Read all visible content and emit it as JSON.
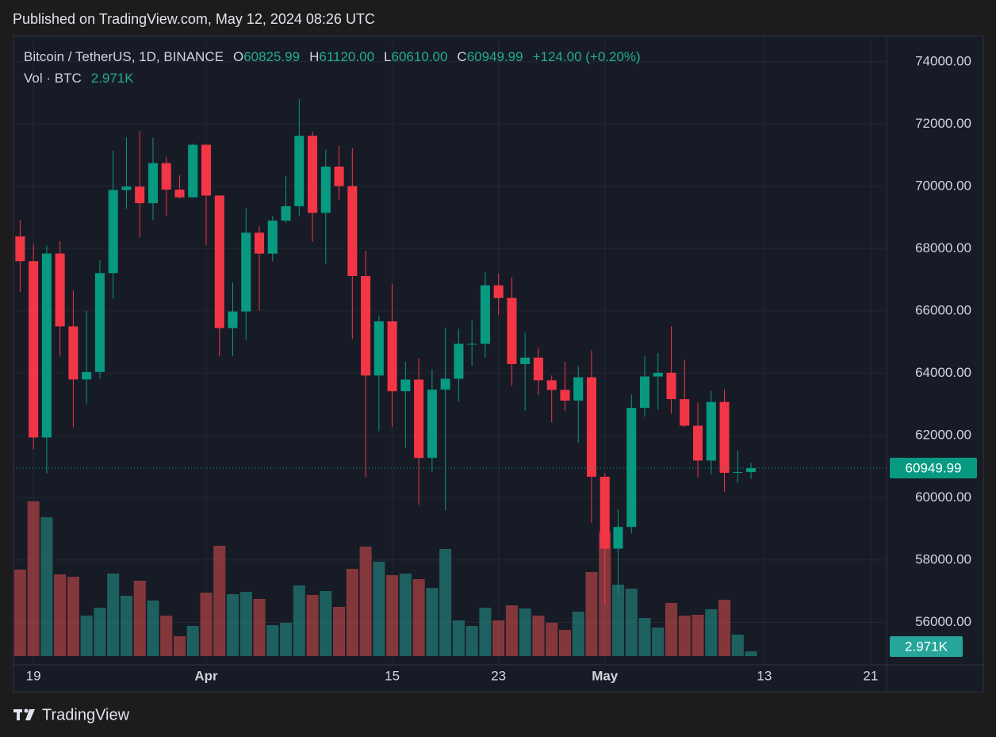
{
  "published": "Published on TradingView.com, May 12, 2024 08:26 UTC",
  "footer": "TradingView",
  "chart_data": {
    "type": "candlestick",
    "legend": {
      "symbol": "Bitcoin / TetherUS, 1D, BINANCE",
      "items": [
        {
          "key": "O",
          "text": "60825.99"
        },
        {
          "key": "H",
          "text": "61120.00"
        },
        {
          "key": "L",
          "text": "60610.00"
        },
        {
          "key": "C",
          "text": "60949.99"
        }
      ],
      "change": "+124.00 (+0.20%)",
      "volume_title": "Vol · BTC",
      "volume_text": "2.971K"
    },
    "up_color": "#089981",
    "down_color": "#f23645",
    "volume_up_color": "#26a69a",
    "volume_down_color": "#ef5350",
    "open": [
      68390,
      67594,
      61933,
      67840,
      65501,
      63796,
      64037,
      67211,
      69880,
      69988,
      69456,
      70744,
      69892,
      69645,
      71333,
      69702,
      65446,
      65980,
      68508,
      67837,
      68896,
      69360,
      71620,
      69146,
      70631,
      70006,
      67116,
      63924,
      65661,
      63419,
      63793,
      61277,
      63470,
      63818,
      64941,
      64941,
      66819,
      66414,
      64289,
      64498,
      63770,
      63461,
      63118,
      63866,
      60672,
      58364,
      59060,
      62882,
      63892,
      64012,
      63165,
      62312,
      61193,
      63074,
      60799,
      60825.99
    ],
    "high": [
      68920,
      68124,
      68100,
      68240,
      66650,
      65999,
      67622,
      71150,
      71561,
      71769,
      71552,
      70948,
      70355,
      71377,
      71342,
      69708,
      66914,
      69291,
      68725,
      69040,
      70326,
      72797,
      71758,
      71172,
      71305,
      71227,
      67931,
      65840,
      66867,
      64365,
      64475,
      64125,
      65450,
      65419,
      65695,
      67232,
      67200,
      67075,
      65297,
      64820,
      63923,
      64370,
      64228,
      64734,
      60780,
      59625,
      63320,
      64545,
      64646,
      65500,
      64422,
      63052,
      63421,
      63470,
      61515,
      61120
    ],
    "low": [
      66601,
      61555,
      60775,
      64529,
      62260,
      63000,
      63825,
      66385,
      69280,
      68359,
      68903,
      69064,
      69601,
      69623,
      68110,
      64533,
      64560,
      65064,
      66011,
      67588,
      68824,
      69043,
      68210,
      67518,
      69567,
      65086,
      60660,
      62134,
      62274,
      61600,
      59768,
      60833,
      59600,
      63090,
      64237,
      64500,
      65863,
      63589,
      62794,
      63297,
      62424,
      62781,
      61765,
      59191,
      56552,
      56911,
      58848,
      62600,
      62822,
      62700,
      62261,
      60648,
      60750,
      60187,
      60487,
      60610
    ],
    "close": [
      67594,
      61933,
      67840,
      65501,
      63796,
      64037,
      67211,
      69880,
      69988,
      69456,
      70744,
      69892,
      69645,
      71333,
      69702,
      65446,
      65980,
      68508,
      67837,
      68896,
      69360,
      71620,
      69146,
      70631,
      70006,
      67116,
      63924,
      65661,
      63419,
      63793,
      61277,
      63470,
      63818,
      64941,
      64941,
      66819,
      66414,
      64289,
      64498,
      63770,
      63461,
      63118,
      63866,
      60672,
      58364,
      59060,
      62882,
      63892,
      64012,
      63165,
      62312,
      61193,
      63074,
      60799,
      60825.99,
      60949.99
    ],
    "volume": [
      53955,
      96525,
      86625,
      50985,
      49500,
      25245,
      30195,
      51480,
      37620,
      47025,
      34650,
      25245,
      12375,
      18810,
      39600,
      68805,
      38610,
      40095,
      35640,
      19305,
      20790,
      44055,
      38115,
      40590,
      30690,
      54450,
      68310,
      58905,
      50490,
      51480,
      48015,
      42570,
      66825,
      22275,
      18810,
      30195,
      22275,
      31680,
      29700,
      25245,
      20790,
      16335,
      27720,
      52470,
      77715,
      44550,
      42075,
      23760,
      17820,
      33165,
      25245,
      25740,
      29205,
      35145,
      13365,
      2971
    ],
    "xlim": [
      -0.5,
      65.2
    ],
    "xticks": [
      {
        "value": 1,
        "label": "19"
      },
      {
        "value": 14,
        "label": "Apr"
      },
      {
        "value": 28,
        "label": "15"
      },
      {
        "value": 36,
        "label": "23"
      },
      {
        "value": 44,
        "label": "May"
      },
      {
        "value": 56,
        "label": "13"
      },
      {
        "value": 64,
        "label": "21"
      }
    ],
    "ylim": [
      54633,
      74835
    ],
    "yticks": [
      {
        "value": 56000,
        "label": "56000.00"
      },
      {
        "value": 58000,
        "label": "58000.00"
      },
      {
        "value": 60000,
        "label": "60000.00"
      },
      {
        "value": 62000,
        "label": "62000.00"
      },
      {
        "value": 64000,
        "label": "64000.00"
      },
      {
        "value": 66000,
        "label": "66000.00"
      },
      {
        "value": 68000,
        "label": "68000.00"
      },
      {
        "value": 70000,
        "label": "70000.00"
      },
      {
        "value": 72000,
        "label": "72000.00"
      },
      {
        "value": 74000,
        "label": "74000.00"
      }
    ],
    "grid": true
  }
}
